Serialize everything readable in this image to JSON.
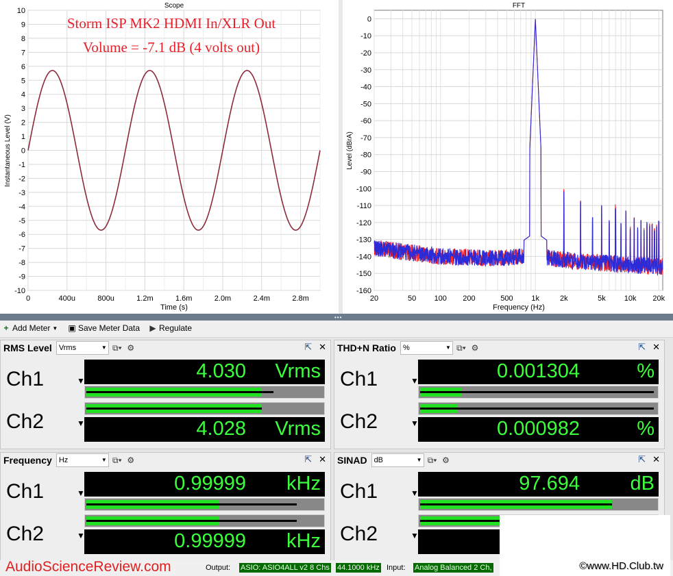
{
  "scope": {
    "title": "Scope",
    "overlay_line1": "Storm ISP MK2 HDMI In/XLR Out",
    "overlay_line2": "Volume = -7.1 dB (4 volts out)",
    "overlay_color": "#e8202a",
    "line_color": "#8b2a3a",
    "xlabel": "Time (s)",
    "ylabel": "Instantaneous Level (V)",
    "x_ticks": [
      "0",
      "400u",
      "800u",
      "1.2m",
      "1.6m",
      "2.0m",
      "2.4m",
      "2.8m"
    ],
    "y_ticks": [
      "10",
      "9",
      "8",
      "7",
      "6",
      "5",
      "4",
      "3",
      "2",
      "1",
      "0",
      "-1",
      "-2",
      "-3",
      "-4",
      "-5",
      "-6",
      "-7",
      "-8",
      "-9",
      "-10"
    ]
  },
  "fft": {
    "title": "FFT",
    "xlabel": "Frequency (Hz)",
    "ylabel": "Level (dBrA)",
    "x_ticks": [
      "20",
      "50",
      "100",
      "200",
      "500",
      "1k",
      "2k",
      "5k",
      "10k",
      "20k"
    ],
    "y_ticks": [
      "0",
      "-10",
      "-20",
      "-30",
      "-40",
      "-50",
      "-60",
      "-70",
      "-80",
      "-90",
      "-100",
      "-110",
      "-120",
      "-130",
      "-140",
      "-150",
      "-160"
    ],
    "ch1_color": "#ff2a2a",
    "ch2_color": "#2b2bd8"
  },
  "chart_data": [
    {
      "type": "line",
      "title": "Scope",
      "xlabel": "Time (s)",
      "ylabel": "Instantaneous Level (V)",
      "xlim": [
        0,
        0.003
      ],
      "ylim": [
        -10,
        10
      ],
      "grid": true,
      "series": [
        {
          "frequency_hz": 1000,
          "amplitude_v": 5.7,
          "phase": "sine starting at 0"
        }
      ]
    },
    {
      "type": "line",
      "title": "FFT",
      "xlabel": "Frequency (Hz)",
      "ylabel": "Level (dBrA)",
      "x_scale": "log",
      "xlim": [
        20,
        22000
      ],
      "ylim": [
        -160,
        5
      ],
      "grid": true,
      "fundamental": {
        "x": 1000,
        "y": 0
      },
      "noise_floor": {
        "x": [
          20,
          100,
          300,
          1000,
          3000,
          10000,
          20000
        ],
        "y": [
          -135,
          -140,
          -141,
          -140,
          -143,
          -145,
          -146
        ]
      },
      "harmonics": {
        "x": [
          2000,
          3000,
          4000,
          5000,
          6000,
          7000,
          8000,
          9000,
          10000,
          11000,
          12000,
          13000,
          14000,
          15000,
          16000,
          17000,
          18000,
          19000,
          20000
        ],
        "y": [
          -102,
          -108,
          -118,
          -110,
          -120,
          -112,
          -122,
          -115,
          -125,
          -118,
          -124,
          -120,
          -126,
          -121,
          -123,
          -122,
          -125,
          -123,
          -120
        ]
      }
    }
  ],
  "toolbar": {
    "add_meter": "Add Meter",
    "save_meter": "Save Meter Data",
    "regulate": "Regulate"
  },
  "panels": {
    "rms": {
      "title": "RMS Level",
      "unit_option": "Vrms",
      "ch1": {
        "label": "Ch1",
        "value": "4.030",
        "unit": "Vrms",
        "bar_fraction": 0.75,
        "peak_fraction": 0.8
      },
      "ch2": {
        "label": "Ch2",
        "value": "4.028",
        "unit": "Vrms",
        "bar_fraction": 0.75,
        "peak_fraction": 0.75
      }
    },
    "thd": {
      "title": "THD+N Ratio",
      "unit_option": "%",
      "ch1": {
        "label": "Ch1",
        "value": "0.001304",
        "unit": "%",
        "bar_fraction": 0.18,
        "peak_fraction": 1.0
      },
      "ch2": {
        "label": "Ch2",
        "value": "0.000982",
        "unit": "%",
        "bar_fraction": 0.16,
        "peak_fraction": 1.0
      }
    },
    "freq": {
      "title": "Frequency",
      "unit_option": "Hz",
      "ch1": {
        "label": "Ch1",
        "value": "0.99999",
        "unit": "kHz",
        "bar_fraction": 0.57,
        "peak_fraction": 0.9
      },
      "ch2": {
        "label": "Ch2",
        "value": "0.99999",
        "unit": "kHz",
        "bar_fraction": 0.57,
        "peak_fraction": 0.9
      }
    },
    "sinad": {
      "title": "SINAD",
      "unit_option": "dB",
      "ch1": {
        "label": "Ch1",
        "value": "97.694",
        "unit": "dB",
        "bar_fraction": 0.82,
        "peak_fraction": 0.82
      },
      "ch2": {
        "label": "Ch2",
        "value": "",
        "unit": "",
        "bar_fraction": 0.82,
        "peak_fraction": 0.82
      }
    }
  },
  "status": {
    "brand": "AudioScienceReview.com",
    "output_label": "Output:",
    "output_device": "ASIO: ASIO4ALL v2 8 Chs",
    "sample_rate": "44.1000 kHz",
    "input_label": "Input:",
    "input_device": "Analog Balanced 2 Ch,"
  },
  "watermark": "©www.HD.Club.tw"
}
